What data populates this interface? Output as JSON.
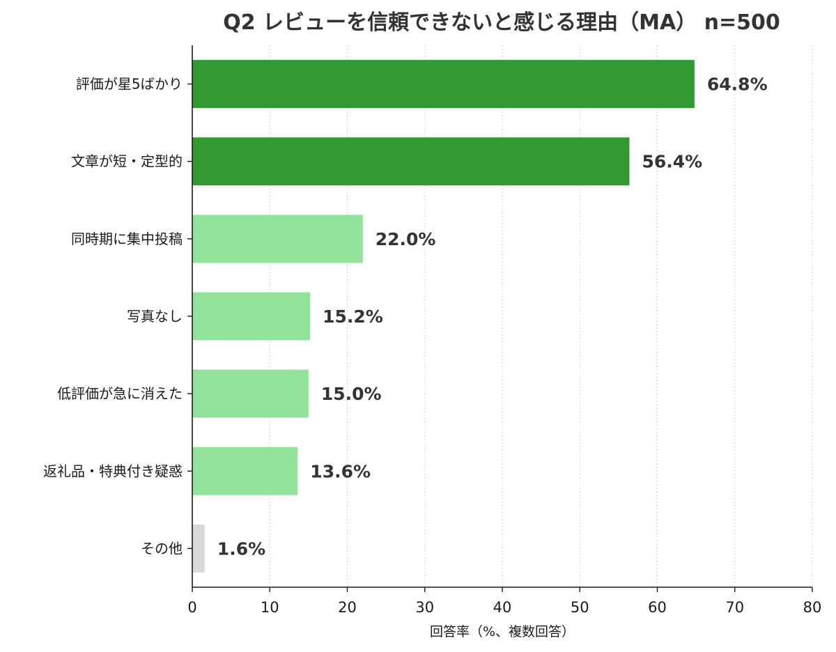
{
  "chart_data": {
    "type": "bar",
    "orientation": "horizontal",
    "title": "Q2 レビューを信頼できないと感じる理由（MA） n=500",
    "xlabel": "回答率（%、複数回答）",
    "ylabel": "",
    "xlim": [
      0,
      80
    ],
    "xticks": [
      0,
      10,
      20,
      30,
      40,
      50,
      60,
      70,
      80
    ],
    "grid": "vertical-dotted",
    "categories": [
      "評価が星5ばかり",
      "文章が短・定型的",
      "同時期に集中投稿",
      "写真なし",
      "低評価が急に消えた",
      "返礼品・特典付き疑惑",
      "その他"
    ],
    "values": [
      64.8,
      56.4,
      22.0,
      15.2,
      15.0,
      13.6,
      1.6
    ],
    "value_labels": [
      "64.8%",
      "56.4%",
      "22.0%",
      "15.2%",
      "15.0%",
      "13.6%",
      "1.6%"
    ],
    "bar_colors": [
      "#339933",
      "#339933",
      "#93e29b",
      "#93e29b",
      "#93e29b",
      "#93e29b",
      "#d9d9d9"
    ]
  }
}
